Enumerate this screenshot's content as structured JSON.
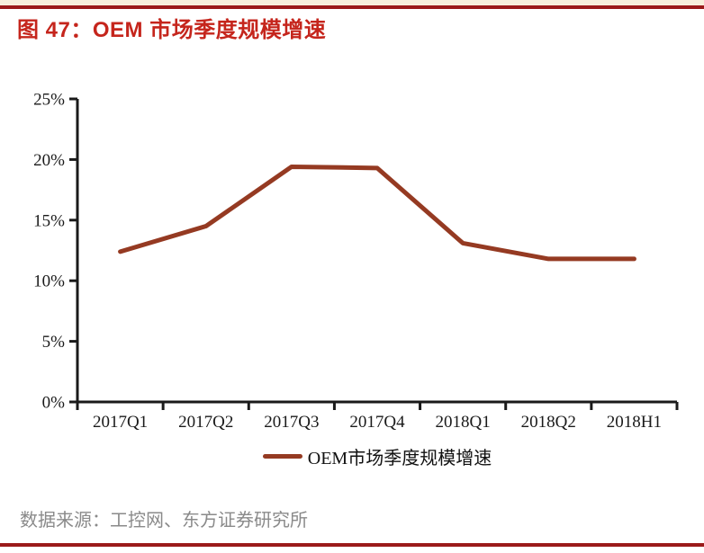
{
  "page": {
    "title": "图 47：OEM 市场季度规模增速",
    "source_note": "数据来源：工控网、东方证券研究所"
  },
  "colors": {
    "title_red": "#C5251C",
    "rule_red": "#9B1A1A",
    "top_strip_cream": "#F7EFDC",
    "axis": "#1A1A1A",
    "tick_label": "#1A1A1A",
    "source_gray": "#8A8A8A"
  },
  "chart_data": {
    "type": "line",
    "title": "图 47：OEM 市场季度规模增速",
    "categories": [
      "2017Q1",
      "2017Q2",
      "2017Q3",
      "2017Q4",
      "2018Q1",
      "2018Q2",
      "2018H1"
    ],
    "series": [
      {
        "name": "OEM市场季度规模增速",
        "values": [
          12.4,
          14.5,
          19.4,
          19.3,
          13.1,
          11.8,
          11.8
        ]
      }
    ],
    "unit": "%",
    "ylim": [
      0,
      25
    ],
    "yticks": [
      0,
      5,
      10,
      15,
      20,
      25
    ],
    "ytick_labels": [
      "0%",
      "5%",
      "10%",
      "15%",
      "20%",
      "25%"
    ],
    "xlabel": "",
    "ylabel": "",
    "grid": false,
    "legend_position": "bottom",
    "line_color": "#953A22"
  }
}
